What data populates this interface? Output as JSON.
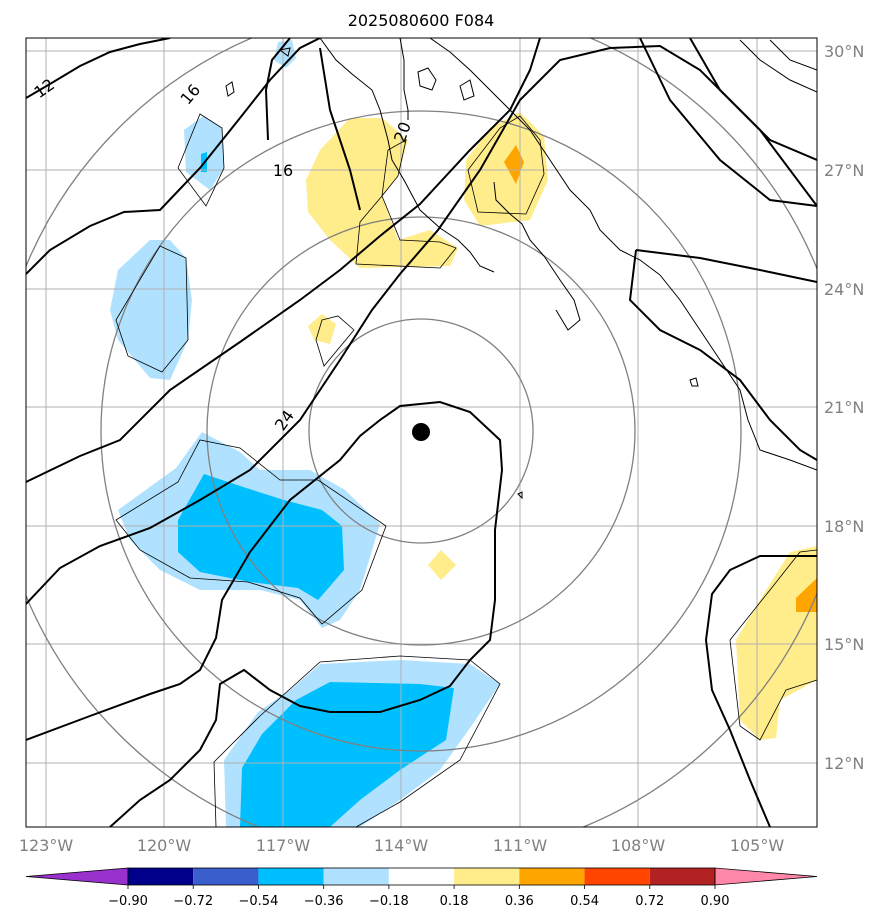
{
  "title": "2025080600 F084",
  "map": {
    "lon_ticks": [
      "123°W",
      "120°W",
      "117°W",
      "114°W",
      "111°W",
      "108°W",
      "105°W"
    ],
    "lat_ticks": [
      "30°N",
      "27°N",
      "24°N",
      "21°N",
      "18°N",
      "15°N",
      "12°N"
    ],
    "contour_labels": [
      "12",
      "16",
      "16",
      "20",
      "24"
    ],
    "storm_center": {
      "lon": "113.5°W",
      "lat": "20.4°N"
    }
  },
  "colorbar": {
    "tick_labels": [
      "−0.90",
      "−0.72",
      "−0.54",
      "−0.36",
      "−0.18",
      "0.18",
      "0.36",
      "0.54",
      "0.72",
      "0.90"
    ],
    "colors": [
      "#9932CC",
      "#00008B",
      "#3A5FCD",
      "#00BFFF",
      "#B0E2FF",
      "#FFFFFF",
      "#FFEC8B",
      "#FFA500",
      "#FF4500",
      "#B22222",
      "#FF88AA"
    ]
  },
  "colors": {
    "light_blue": "#B0E2FF",
    "deep_sky": "#00BFFF",
    "light_yellow": "#FFEC8B",
    "orange": "#FFA500",
    "gridline": "#B0B0B0",
    "range_ring": "#808080"
  }
}
